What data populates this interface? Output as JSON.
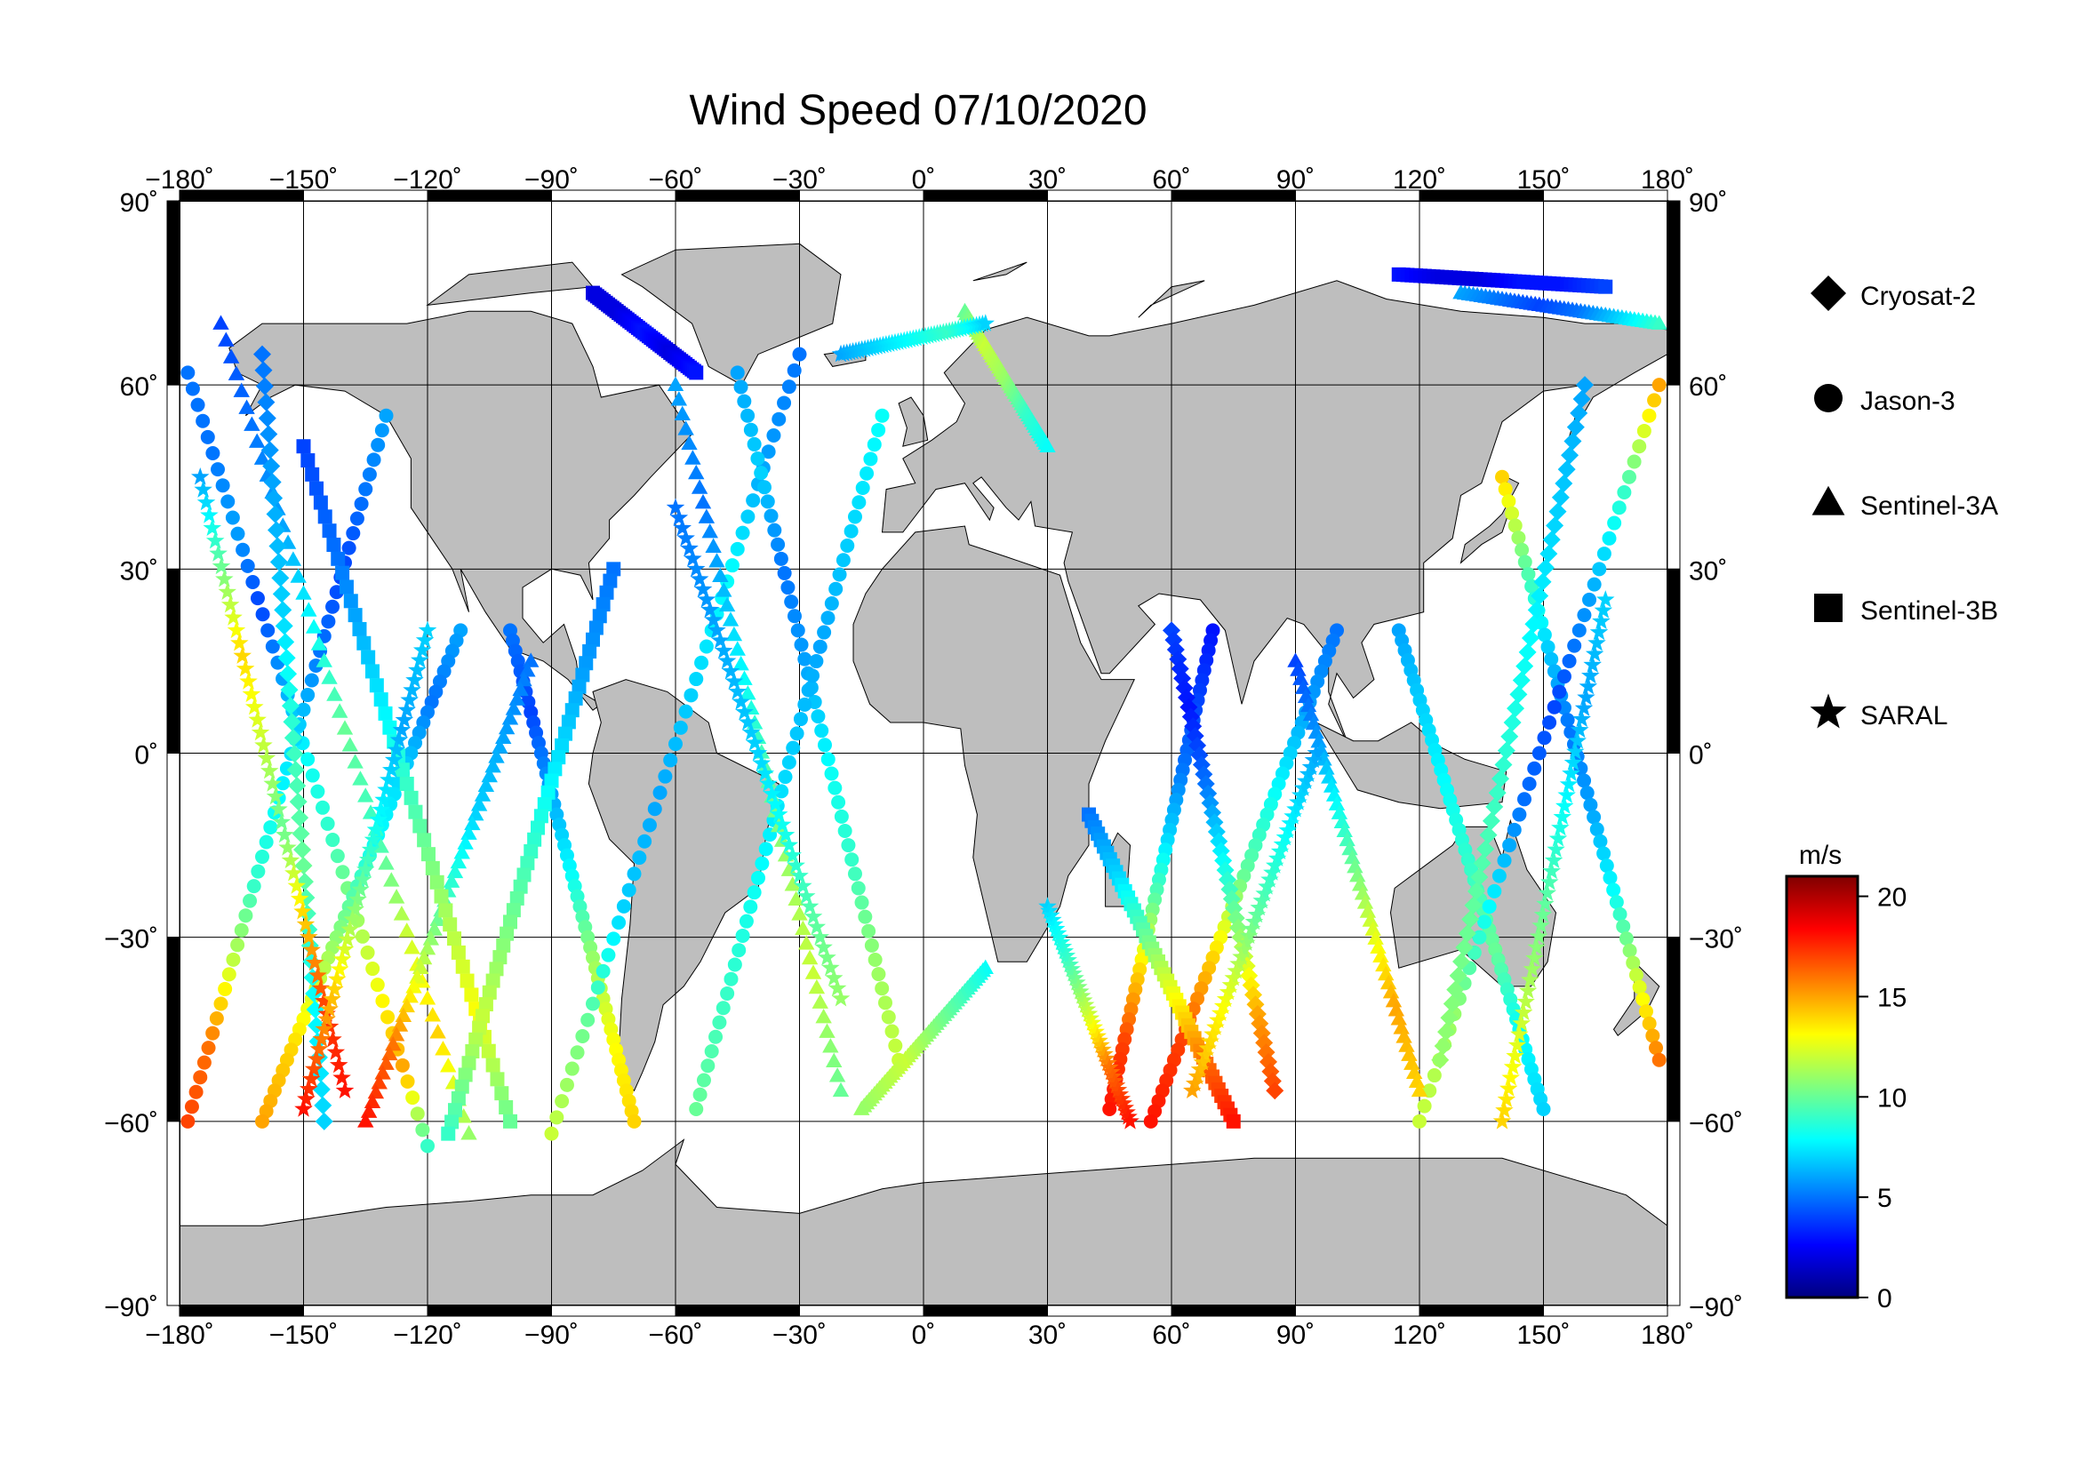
{
  "title": "Wind Speed 07/10/2020",
  "map": {
    "lon_range": [
      -180,
      180
    ],
    "lat_range": [
      -90,
      90
    ],
    "grid": true,
    "land_color": "#bebebe",
    "ocean_color": "#ffffff",
    "lon_ticks": [
      {
        "value": -180,
        "label": "−180˚"
      },
      {
        "value": -150,
        "label": "−150˚"
      },
      {
        "value": -120,
        "label": "−120˚"
      },
      {
        "value": -90,
        "label": "−90˚"
      },
      {
        "value": -60,
        "label": "−60˚"
      },
      {
        "value": -30,
        "label": "−30˚"
      },
      {
        "value": 0,
        "label": "0˚"
      },
      {
        "value": 30,
        "label": "30˚"
      },
      {
        "value": 60,
        "label": "60˚"
      },
      {
        "value": 90,
        "label": "90˚"
      },
      {
        "value": 120,
        "label": "120˚"
      },
      {
        "value": 150,
        "label": "150˚"
      },
      {
        "value": 180,
        "label": "180˚"
      }
    ],
    "lat_ticks": [
      {
        "value": 90,
        "label": "90˚"
      },
      {
        "value": 60,
        "label": "60˚"
      },
      {
        "value": 30,
        "label": "30˚"
      },
      {
        "value": 0,
        "label": "0˚"
      },
      {
        "value": -30,
        "label": "−30˚"
      },
      {
        "value": -60,
        "label": "−60˚"
      },
      {
        "value": -90,
        "label": "−90˚"
      }
    ]
  },
  "legend": {
    "placement": "right",
    "items": [
      {
        "name": "Cryosat-2",
        "marker": "diamond"
      },
      {
        "name": "Jason-3",
        "marker": "circle"
      },
      {
        "name": "Sentinel-3A",
        "marker": "triangle"
      },
      {
        "name": "Sentinel-3B",
        "marker": "square"
      },
      {
        "name": "SARAL",
        "marker": "star"
      }
    ]
  },
  "colorbar": {
    "unit": "m/s",
    "range": [
      0,
      21
    ],
    "ticks": [
      {
        "value": 20,
        "label": "20"
      },
      {
        "value": 15,
        "label": "15"
      },
      {
        "value": 10,
        "label": "10"
      },
      {
        "value": 5,
        "label": "5"
      },
      {
        "value": 0,
        "label": "0"
      }
    ],
    "colors": [
      "#00007f",
      "#0000ff",
      "#007fff",
      "#00ffff",
      "#7fff7f",
      "#ffff00",
      "#ff7f00",
      "#ff0000",
      "#7f0000"
    ]
  },
  "chart_data": {
    "type": "scatter",
    "tracks": [
      {
        "satellite": "Jason-3",
        "start": [
          -178,
          62
        ],
        "end": [
          -120,
          -64
        ],
        "speeds": [
          5,
          5,
          6,
          4,
          6,
          8,
          9,
          11,
          13,
          15,
          9
        ]
      },
      {
        "satellite": "Jason-3",
        "start": [
          -130,
          55
        ],
        "end": [
          -178,
          -60
        ],
        "speeds": [
          6,
          5,
          4,
          5,
          7,
          8,
          9,
          12,
          16,
          17
        ]
      },
      {
        "satellite": "Jason-3",
        "start": [
          -112,
          20
        ],
        "end": [
          -160,
          -60
        ],
        "speeds": [
          6,
          5,
          7,
          8,
          10,
          12,
          14,
          15
        ]
      },
      {
        "satellite": "Jason-3",
        "start": [
          -100,
          20
        ],
        "end": [
          -70,
          -60
        ],
        "speeds": [
          5,
          4,
          6,
          8,
          11,
          13,
          14
        ]
      },
      {
        "satellite": "Jason-3",
        "start": [
          -30,
          65
        ],
        "end": [
          -90,
          -62
        ],
        "speeds": [
          5,
          6,
          8,
          7,
          6,
          7,
          10,
          12
        ]
      },
      {
        "satellite": "Jason-3",
        "start": [
          -45,
          62
        ],
        "end": [
          -6,
          -50
        ],
        "speeds": [
          6,
          7,
          5,
          6,
          8,
          9,
          11,
          12
        ]
      },
      {
        "satellite": "Jason-3",
        "start": [
          -10,
          55
        ],
        "end": [
          -55,
          -58
        ],
        "speeds": [
          8,
          7,
          6,
          7,
          8,
          9,
          10
        ]
      },
      {
        "satellite": "Jason-3",
        "start": [
          70,
          20
        ],
        "end": [
          45,
          -58
        ],
        "speeds": [
          3,
          4,
          5,
          7,
          10,
          14,
          17,
          18
        ]
      },
      {
        "satellite": "Jason-3",
        "start": [
          100,
          20
        ],
        "end": [
          55,
          -60
        ],
        "speeds": [
          5,
          6,
          8,
          10,
          14,
          17,
          18
        ]
      },
      {
        "satellite": "Jason-3",
        "start": [
          115,
          20
        ],
        "end": [
          150,
          -58
        ],
        "speeds": [
          6,
          7,
          8,
          9,
          10,
          8,
          7
        ]
      },
      {
        "satellite": "Jason-3",
        "start": [
          140,
          45
        ],
        "end": [
          178,
          -50
        ],
        "speeds": [
          14,
          10,
          7,
          5,
          6,
          8,
          12,
          16
        ]
      },
      {
        "satellite": "Jason-3",
        "start": [
          178,
          60
        ],
        "end": [
          120,
          -60
        ],
        "speeds": [
          15,
          9,
          6,
          4,
          5,
          8,
          11,
          12
        ]
      },
      {
        "satellite": "Sentinel-3A",
        "start": [
          -170,
          70
        ],
        "end": [
          -110,
          -62
        ],
        "speeds": [
          4,
          5,
          6,
          8,
          10,
          9,
          12,
          14,
          11
        ]
      },
      {
        "satellite": "Sentinel-3A",
        "start": [
          -95,
          15
        ],
        "end": [
          -135,
          -60
        ],
        "speeds": [
          5,
          6,
          7,
          9,
          12,
          16,
          18
        ]
      },
      {
        "satellite": "Sentinel-3A",
        "start": [
          -60,
          60
        ],
        "end": [
          -20,
          -55
        ],
        "speeds": [
          6,
          5,
          7,
          9,
          11,
          12,
          10
        ]
      },
      {
        "satellite": "Sentinel-3A",
        "start": [
          10,
          72
        ],
        "end": [
          30,
          50
        ],
        "speeds": [
          10,
          12,
          11,
          9,
          8
        ]
      },
      {
        "satellite": "Sentinel-3A",
        "start": [
          15,
          -35
        ],
        "end": [
          -15,
          -58
        ],
        "speeds": [
          8,
          10,
          12,
          11
        ]
      },
      {
        "satellite": "Sentinel-3A",
        "start": [
          90,
          15
        ],
        "end": [
          120,
          -55
        ],
        "speeds": [
          4,
          6,
          9,
          12,
          15,
          14
        ]
      },
      {
        "satellite": "Sentinel-3A",
        "start": [
          130,
          75
        ],
        "end": [
          178,
          70
        ],
        "speeds": [
          6,
          5,
          4,
          5,
          7,
          9
        ]
      },
      {
        "satellite": "Sentinel-3B",
        "start": [
          -80,
          75
        ],
        "end": [
          -55,
          62
        ],
        "speeds": [
          2,
          2,
          3,
          2,
          3
        ]
      },
      {
        "satellite": "Sentinel-3B",
        "start": [
          -150,
          50
        ],
        "end": [
          -100,
          -60
        ],
        "speeds": [
          4,
          5,
          7,
          9,
          11,
          13,
          10
        ]
      },
      {
        "satellite": "Sentinel-3B",
        "start": [
          -75,
          30
        ],
        "end": [
          -115,
          -62
        ],
        "speeds": [
          5,
          6,
          8,
          10,
          12,
          9
        ]
      },
      {
        "satellite": "Sentinel-3B",
        "start": [
          115,
          78
        ],
        "end": [
          165,
          76
        ],
        "speeds": [
          3,
          2,
          2,
          3,
          3,
          4
        ]
      },
      {
        "satellite": "Sentinel-3B",
        "start": [
          40,
          -10
        ],
        "end": [
          75,
          -60
        ],
        "speeds": [
          5,
          7,
          10,
          13,
          16,
          18
        ]
      },
      {
        "satellite": "Cryosat-2",
        "start": [
          -160,
          65
        ],
        "end": [
          -145,
          -60
        ],
        "speeds": [
          5,
          6,
          7,
          9,
          10,
          8,
          7
        ]
      },
      {
        "satellite": "Cryosat-2",
        "start": [
          60,
          20
        ],
        "end": [
          85,
          -55
        ],
        "speeds": [
          4,
          3,
          5,
          8,
          11,
          15,
          17
        ]
      },
      {
        "satellite": "Cryosat-2",
        "start": [
          160,
          60
        ],
        "end": [
          125,
          -50
        ],
        "speeds": [
          6,
          7,
          8,
          9,
          10,
          11
        ]
      },
      {
        "satellite": "SARAL",
        "start": [
          -175,
          45
        ],
        "end": [
          -140,
          -55
        ],
        "speeds": [
          6,
          10,
          14,
          12,
          10,
          14,
          17,
          18
        ]
      },
      {
        "satellite": "SARAL",
        "start": [
          -120,
          20
        ],
        "end": [
          -150,
          -58
        ],
        "speeds": [
          7,
          6,
          8,
          11,
          15,
          18
        ]
      },
      {
        "satellite": "SARAL",
        "start": [
          -60,
          40
        ],
        "end": [
          -20,
          -40
        ],
        "speeds": [
          5,
          6,
          7,
          9,
          11
        ]
      },
      {
        "satellite": "SARAL",
        "start": [
          -20,
          65
        ],
        "end": [
          15,
          70
        ],
        "speeds": [
          6,
          7,
          8,
          9,
          7
        ]
      },
      {
        "satellite": "SARAL",
        "start": [
          30,
          -25
        ],
        "end": [
          50,
          -60
        ],
        "speeds": [
          7,
          9,
          12,
          16,
          18
        ]
      },
      {
        "satellite": "SARAL",
        "start": [
          95,
          0
        ],
        "end": [
          65,
          -55
        ],
        "speeds": [
          6,
          8,
          10,
          13,
          15
        ]
      },
      {
        "satellite": "SARAL",
        "start": [
          165,
          25
        ],
        "end": [
          140,
          -60
        ],
        "speeds": [
          7,
          6,
          8,
          10,
          12,
          14
        ]
      }
    ]
  }
}
